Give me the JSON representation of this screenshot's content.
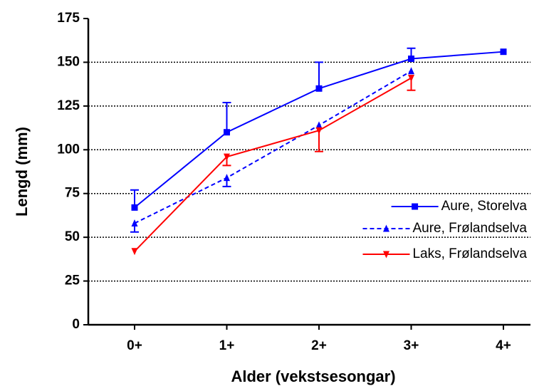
{
  "chart_data": {
    "type": "line",
    "x_label": "Alder (vekstsesongar)",
    "y_label": "Lengd (mm)",
    "categories": [
      "0+",
      "1+",
      "2+",
      "3+",
      "4+"
    ],
    "ylim": [
      0,
      175
    ],
    "yticks": [
      0,
      25,
      50,
      75,
      100,
      125,
      150,
      175
    ],
    "grid": true,
    "legend": "right",
    "series": [
      {
        "name": "Aure, Storelva",
        "color": "#0000ff",
        "marker": "square",
        "line_style": "solid",
        "error_direction": "up",
        "values": [
          67,
          110,
          135,
          152,
          156
        ],
        "errors": [
          10,
          17,
          15,
          6,
          null
        ]
      },
      {
        "name": "Aure, Frølandselva",
        "color": "#0000ff",
        "marker": "triangle-up",
        "line_style": "dashed",
        "error_direction": "down",
        "values": [
          58,
          84,
          114,
          145,
          null
        ],
        "errors": [
          5,
          5,
          null,
          null,
          null
        ]
      },
      {
        "name": "Laks, Frølandselva",
        "color": "#ff0000",
        "marker": "triangle-down",
        "line_style": "solid",
        "error_direction": "down",
        "values": [
          42,
          96,
          111,
          141,
          null
        ],
        "errors": [
          null,
          5,
          12,
          7,
          null
        ]
      }
    ]
  }
}
